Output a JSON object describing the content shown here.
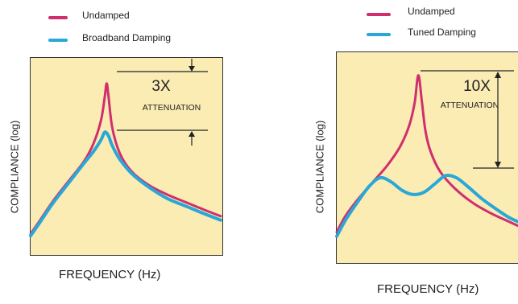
{
  "chart_data": [
    {
      "type": "line",
      "title": "",
      "xlabel": "FREQUENCY (Hz)",
      "ylabel": "COMPLIANCE (log)",
      "x_scale": "relative",
      "xlim": [
        0,
        1
      ],
      "ylim": [
        0,
        1
      ],
      "legend_position": "top-left, above plot",
      "annotation": {
        "multiplier": "3X",
        "text": "ATTENUATION"
      },
      "series": [
        {
          "name": "Undamped",
          "color": "#d02f6e",
          "x": [
            0.0,
            0.05,
            0.12,
            0.2,
            0.28,
            0.33,
            0.37,
            0.39,
            0.4,
            0.41,
            0.43,
            0.47,
            0.53,
            0.62,
            0.72,
            0.82,
            0.92,
            1.0
          ],
          "y": [
            0.1,
            0.17,
            0.27,
            0.37,
            0.47,
            0.56,
            0.68,
            0.8,
            0.87,
            0.8,
            0.64,
            0.51,
            0.42,
            0.35,
            0.3,
            0.26,
            0.22,
            0.19
          ]
        },
        {
          "name": "Broadband Damping",
          "color": "#29a8d8",
          "x": [
            0.0,
            0.05,
            0.12,
            0.2,
            0.28,
            0.33,
            0.37,
            0.39,
            0.41,
            0.43,
            0.47,
            0.53,
            0.62,
            0.72,
            0.82,
            0.92,
            1.0
          ],
          "y": [
            0.09,
            0.16,
            0.26,
            0.36,
            0.46,
            0.52,
            0.58,
            0.62,
            0.6,
            0.55,
            0.48,
            0.41,
            0.34,
            0.28,
            0.24,
            0.2,
            0.17
          ]
        }
      ]
    },
    {
      "type": "line",
      "title": "",
      "xlabel": "FREQUENCY (Hz)",
      "ylabel": "COMPLIANCE (log)",
      "x_scale": "relative",
      "xlim": [
        0,
        1
      ],
      "ylim": [
        0,
        1
      ],
      "legend_position": "top-left, above plot",
      "annotation": {
        "multiplier": "10X",
        "text": "ATTENUATION"
      },
      "series": [
        {
          "name": "Undamped",
          "color": "#d02f6e",
          "x": [
            0.0,
            0.05,
            0.12,
            0.2,
            0.28,
            0.35,
            0.4,
            0.43,
            0.45,
            0.47,
            0.49,
            0.52,
            0.57,
            0.65,
            0.75,
            0.85,
            0.95,
            1.0
          ],
          "y": [
            0.14,
            0.22,
            0.3,
            0.38,
            0.46,
            0.55,
            0.65,
            0.76,
            0.89,
            0.76,
            0.62,
            0.52,
            0.43,
            0.35,
            0.28,
            0.23,
            0.19,
            0.17
          ]
        },
        {
          "name": "Tuned Damping",
          "color": "#29a8d8",
          "x": [
            0.0,
            0.05,
            0.12,
            0.18,
            0.24,
            0.3,
            0.36,
            0.42,
            0.48,
            0.54,
            0.6,
            0.66,
            0.72,
            0.8,
            0.88,
            0.95,
            1.0
          ],
          "y": [
            0.12,
            0.2,
            0.29,
            0.36,
            0.4,
            0.38,
            0.34,
            0.32,
            0.33,
            0.37,
            0.41,
            0.4,
            0.36,
            0.3,
            0.25,
            0.21,
            0.19
          ]
        }
      ]
    }
  ]
}
